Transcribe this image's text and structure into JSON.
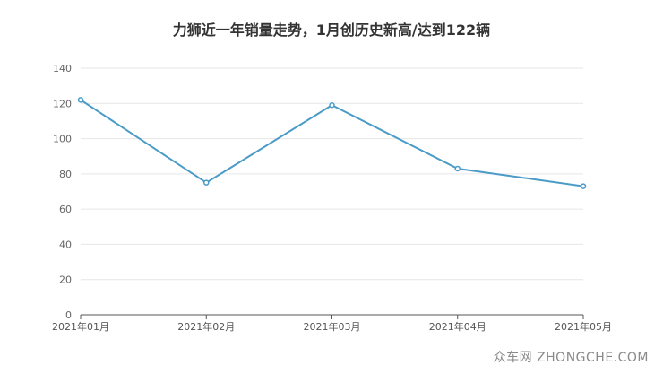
{
  "chart_data": {
    "type": "line",
    "title": "力狮近一年销量走势，1月创历史新高/达到122辆",
    "categories": [
      "2021年01月",
      "2021年02月",
      "2021年03月",
      "2021年04月",
      "2021年05月"
    ],
    "series": [
      {
        "values": [
          122,
          75,
          119,
          83,
          73
        ]
      }
    ],
    "ylim": [
      0,
      140
    ],
    "yticks": [
      0,
      20,
      40,
      60,
      80,
      100,
      120,
      140
    ],
    "grid": true,
    "colors": {
      "line": "#4a9bc7",
      "grid": "#e6e6e6",
      "axis": "#555555"
    }
  },
  "watermark": "众车网 ZHONGCHE.COM"
}
